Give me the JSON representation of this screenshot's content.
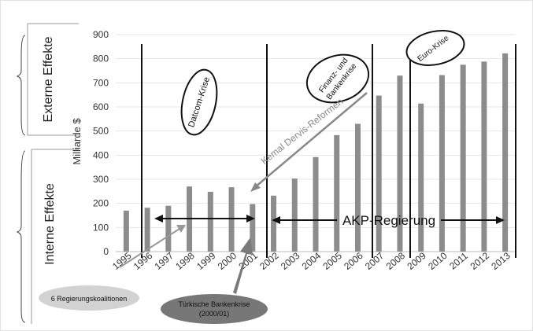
{
  "chart_data": {
    "type": "bar",
    "title": "",
    "xlabel": "",
    "ylabel": "Milliarde $",
    "ylim": [
      0,
      900
    ],
    "yticks": [
      0,
      100,
      200,
      300,
      400,
      500,
      600,
      700,
      800,
      900
    ],
    "grid": true,
    "categories": [
      "1995",
      "1996",
      "1997",
      "1998",
      "1999",
      "2000",
      "2001",
      "2002",
      "2003",
      "2004",
      "2005",
      "2006",
      "2007",
      "2008",
      "2009",
      "2010",
      "2011",
      "2012",
      "2013"
    ],
    "values": [
      170,
      182,
      190,
      270,
      248,
      267,
      197,
      232,
      303,
      392,
      483,
      530,
      647,
      730,
      614,
      732,
      775,
      788,
      822
    ],
    "bar_color": "#8c8c8c",
    "annotations": {
      "externe_effekte": "Externe Effekte",
      "interne_effekte": "Interne Effekte",
      "dotcom": "Datcom-Krise",
      "finanz_line1": "Finanz- und",
      "finanz_line2": "Bankenkrise",
      "euro": "Euro-Krise",
      "dervis": "Kemal Dervis-Reformen",
      "akp": "AKP-Regierung",
      "koalitionen": "6 Regierungskoalitionen",
      "bankenkrise_line1": "Türkische Bankenkrise",
      "bankenkrise_line2": "(2000/01)"
    }
  }
}
